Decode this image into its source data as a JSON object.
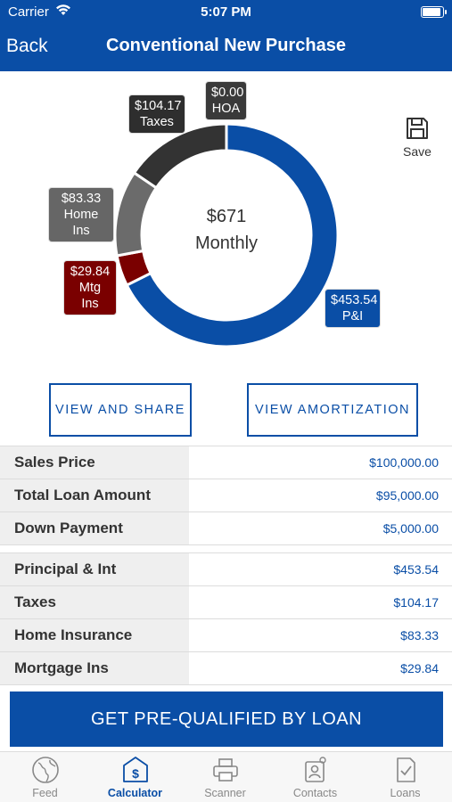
{
  "status_bar": {
    "carrier": "Carrier",
    "time": "5:07 PM"
  },
  "nav": {
    "back_label": "Back",
    "title": "Conventional New Purchase"
  },
  "chart_data": {
    "type": "pie",
    "variant": "donut",
    "center_value": "$671",
    "center_label": "Monthly",
    "slices": [
      {
        "name": "P&I",
        "label": "$453.54",
        "value": 453.54,
        "color": "#0a4ea6"
      },
      {
        "name": "Mtg Ins",
        "label": "$29.84",
        "value": 29.84,
        "color": "#7a0000"
      },
      {
        "name": "Home Ins",
        "label": "$83.33",
        "value": 83.33,
        "color": "#6b6b6b"
      },
      {
        "name": "Taxes",
        "label": "$104.17",
        "value": 104.17,
        "color": "#333333"
      },
      {
        "name": "HOA",
        "label": "$0.00",
        "value": 0.0,
        "color": "#3a3a3a"
      }
    ]
  },
  "save": {
    "label": "Save",
    "icon": "floppy-disk-icon"
  },
  "buttons": {
    "view_share": "VIEW AND SHARE",
    "view_amortization": "VIEW AMORTIZATION"
  },
  "loan_table": [
    {
      "label": "Sales Price",
      "value": "$100,000.00"
    },
    {
      "label": "Total Loan Amount",
      "value": "$95,000.00"
    },
    {
      "label": "Down Payment",
      "value": "$5,000.00"
    }
  ],
  "payment_table": [
    {
      "label": "Principal & Int",
      "value": "$453.54"
    },
    {
      "label": "Taxes",
      "value": "$104.17"
    },
    {
      "label": "Home Insurance",
      "value": "$83.33"
    },
    {
      "label": "Mortgage Ins",
      "value": "$29.84"
    }
  ],
  "cta": {
    "label": "GET PRE-QUALIFIED BY LOAN"
  },
  "tabs": [
    {
      "label": "Feed",
      "icon": "globe-icon"
    },
    {
      "label": "Calculator",
      "icon": "calculator-dollar-icon",
      "active": true
    },
    {
      "label": "Scanner",
      "icon": "printer-icon"
    },
    {
      "label": "Contacts",
      "icon": "contacts-icon"
    },
    {
      "label": "Loans",
      "icon": "document-check-icon"
    }
  ],
  "colors": {
    "primary": "#0a4ea6",
    "label_bg": "#efefef",
    "value_text": "#0a4ea6"
  }
}
